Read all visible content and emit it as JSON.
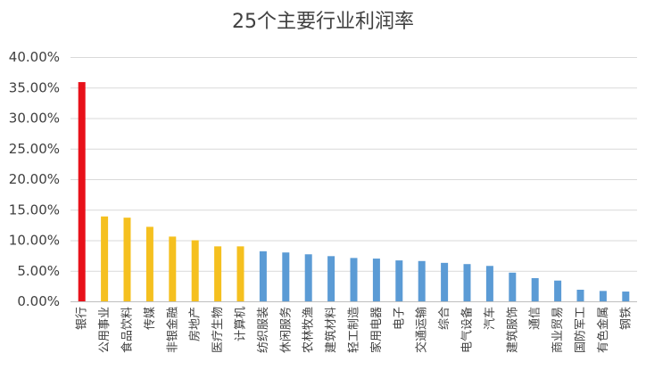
{
  "chart_data": {
    "type": "bar",
    "title": "25个主要行业利润率",
    "xlabel": "",
    "ylabel": "",
    "ylim": [
      0,
      0.4
    ],
    "ytick_values": [
      0,
      0.05,
      0.1,
      0.15,
      0.2,
      0.25,
      0.3,
      0.35,
      0.4
    ],
    "ytick_labels": [
      "0.00%",
      "5.00%",
      "10.00%",
      "15.00%",
      "20.00%",
      "25.00%",
      "30.00%",
      "35.00%",
      "40.00%"
    ],
    "grid": true,
    "categories": [
      "银行",
      "公用事业",
      "食品饮料",
      "传媒",
      "非银金融",
      "房地产",
      "医疗生物",
      "计算机",
      "纺织服装",
      "休闲服务",
      "农林牧渔",
      "建筑材料",
      "轻工制造",
      "家用电器",
      "电子",
      "交通运输",
      "综合",
      "电气设备",
      "汽车",
      "建筑服饰",
      "通信",
      "商业贸易",
      "国防军工",
      "有色金属",
      "钢铁"
    ],
    "values": [
      0.359,
      0.139,
      0.137,
      0.122,
      0.106,
      0.1,
      0.09,
      0.09,
      0.082,
      0.08,
      0.077,
      0.074,
      0.071,
      0.07,
      0.067,
      0.066,
      0.063,
      0.061,
      0.058,
      0.047,
      0.038,
      0.034,
      0.019,
      0.017,
      0.016
    ],
    "colors": [
      "#e8111a",
      "#f5c01f",
      "#f5c01f",
      "#f5c01f",
      "#f5c01f",
      "#f5c01f",
      "#f5c01f",
      "#f5c01f",
      "#5b9bd5",
      "#5b9bd5",
      "#5b9bd5",
      "#5b9bd5",
      "#5b9bd5",
      "#5b9bd5",
      "#5b9bd5",
      "#5b9bd5",
      "#5b9bd5",
      "#5b9bd5",
      "#5b9bd5",
      "#5b9bd5",
      "#5b9bd5",
      "#5b9bd5",
      "#5b9bd5",
      "#5b9bd5",
      "#5b9bd5"
    ]
  }
}
